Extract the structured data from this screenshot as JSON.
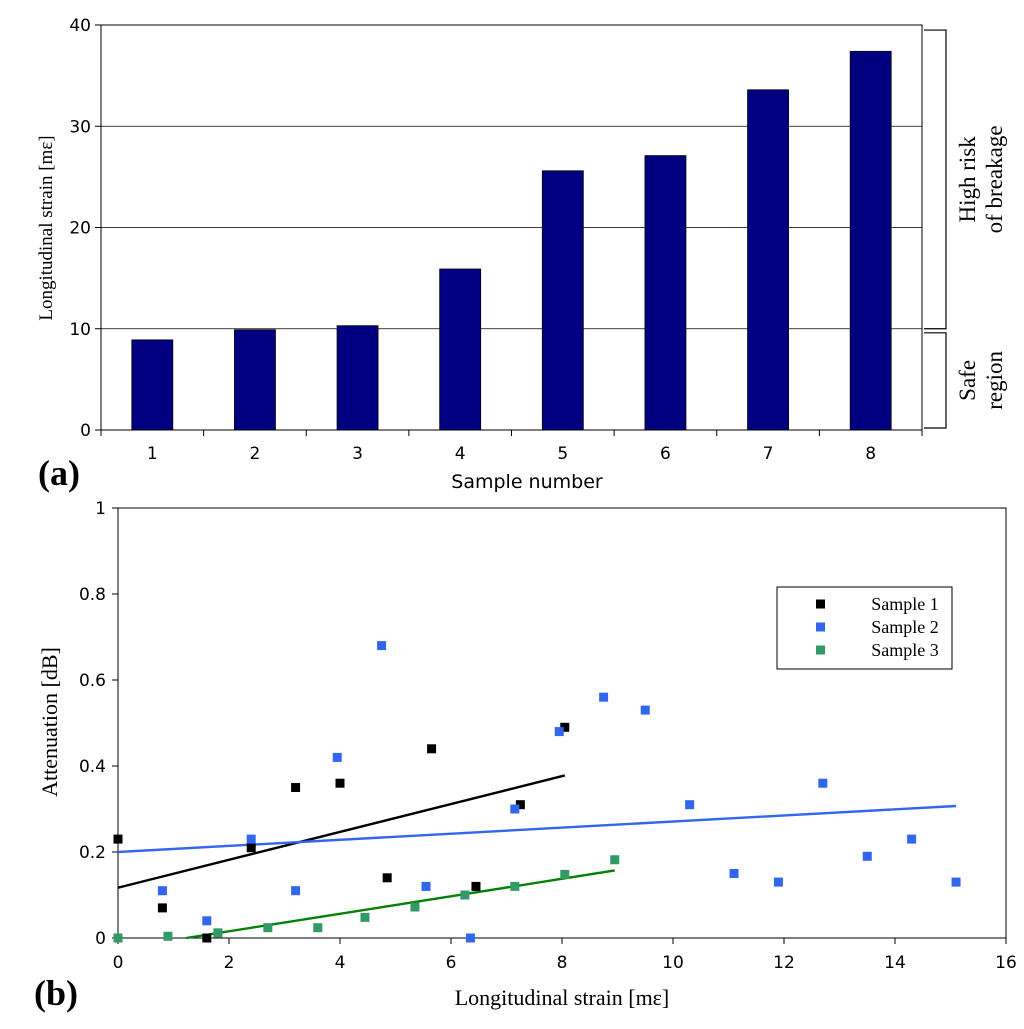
{
  "panel_a_label": "(a)",
  "panel_b_label": "(b)",
  "chart_data": [
    {
      "type": "bar",
      "title": "",
      "xlabel": "Sample number",
      "ylabel": "Longitudinal strain [mε]",
      "categories": [
        "1",
        "2",
        "3",
        "4",
        "5",
        "6",
        "7",
        "8"
      ],
      "values": [
        8.9,
        9.9,
        10.3,
        15.9,
        25.6,
        27.1,
        33.6,
        37.4
      ],
      "ylim": [
        0,
        40
      ],
      "yticks": [
        0,
        10,
        20,
        30,
        40
      ],
      "grid": true,
      "bar_color": "#000080",
      "brackets": [
        {
          "name": "high-risk",
          "lines": [
            "High risk",
            "of breakage"
          ],
          "range": [
            10,
            39.5
          ]
        },
        {
          "name": "safe",
          "lines": [
            "Safe",
            "region"
          ],
          "range": [
            0.2,
            9.6
          ]
        }
      ]
    },
    {
      "type": "scatter",
      "title": "",
      "xlabel": "Longitudinal strain [mε]",
      "ylabel": "Attenuation [dB]",
      "xlim": [
        0,
        16
      ],
      "ylim": [
        0,
        1
      ],
      "xticks": [
        0,
        2,
        4,
        6,
        8,
        10,
        12,
        14,
        16
      ],
      "yticks": [
        0,
        0.2,
        0.4,
        0.6,
        0.8,
        1
      ],
      "ytick_labels": [
        "0",
        "0.2",
        "0.4",
        "0.6",
        "0.8",
        "1"
      ],
      "legend_position": "top-right",
      "series": [
        {
          "name": "Sample 1",
          "color": "#000000",
          "points": [
            [
              0,
              0.23
            ],
            [
              0.8,
              0.07
            ],
            [
              1.6,
              0.0
            ],
            [
              2.4,
              0.21
            ],
            [
              3.2,
              0.35
            ],
            [
              4.0,
              0.36
            ],
            [
              4.85,
              0.14
            ],
            [
              5.65,
              0.44
            ],
            [
              6.45,
              0.12
            ],
            [
              7.25,
              0.31
            ],
            [
              8.05,
              0.49
            ]
          ],
          "trend": [
            [
              0,
              0.117
            ],
            [
              8.05,
              0.378
            ]
          ]
        },
        {
          "name": "Sample 2",
          "color": "#3366ee",
          "points": [
            [
              0,
              0.0
            ],
            [
              0.8,
              0.11
            ],
            [
              1.6,
              0.04
            ],
            [
              2.4,
              0.23
            ],
            [
              3.2,
              0.11
            ],
            [
              3.95,
              0.42
            ],
            [
              4.75,
              0.68
            ],
            [
              5.55,
              0.12
            ],
            [
              6.35,
              0.0
            ],
            [
              7.15,
              0.3
            ],
            [
              7.95,
              0.48
            ],
            [
              8.75,
              0.56
            ],
            [
              9.5,
              0.53
            ],
            [
              10.3,
              0.31
            ],
            [
              11.1,
              0.15
            ],
            [
              11.9,
              0.13
            ],
            [
              12.7,
              0.36
            ],
            [
              13.5,
              0.19
            ],
            [
              14.3,
              0.23
            ],
            [
              15.1,
              0.13
            ]
          ],
          "trend": [
            [
              0,
              0.2
            ],
            [
              15.1,
              0.307
            ]
          ]
        },
        {
          "name": "Sample 3",
          "color": "#339966",
          "points": [
            [
              0,
              0.0
            ],
            [
              0.9,
              0.004
            ],
            [
              1.8,
              0.012
            ],
            [
              2.7,
              0.024
            ],
            [
              3.6,
              0.024
            ],
            [
              4.45,
              0.048
            ],
            [
              5.35,
              0.072
            ],
            [
              6.25,
              0.1
            ],
            [
              7.15,
              0.12
            ],
            [
              8.05,
              0.148
            ],
            [
              8.95,
              0.182
            ]
          ],
          "trend_color": "#008000",
          "trend": [
            [
              0,
              -0.025
            ],
            [
              8.95,
              0.157
            ]
          ]
        }
      ]
    }
  ]
}
